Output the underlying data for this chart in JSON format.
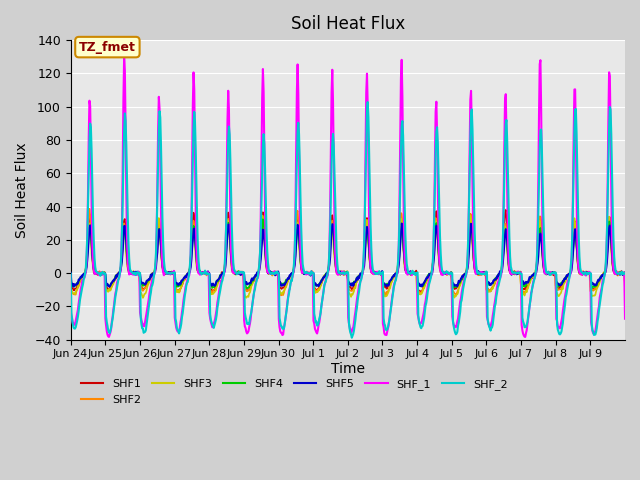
{
  "title": "Soil Heat Flux",
  "ylabel": "Soil Heat Flux",
  "xlabel": "Time",
  "ylim": [
    -40,
    140
  ],
  "series": {
    "SHF1": {
      "color": "#cc0000",
      "peak": 35,
      "trough": -10,
      "lw": 1.2
    },
    "SHF2": {
      "color": "#ff8800",
      "peak": 35,
      "trough": -12,
      "lw": 1.2
    },
    "SHF3": {
      "color": "#cccc00",
      "peak": 32,
      "trough": -13,
      "lw": 1.2
    },
    "SHF4": {
      "color": "#00cc00",
      "peak": 30,
      "trough": -8,
      "lw": 1.2
    },
    "SHF5": {
      "color": "#0000cc",
      "peak": 28,
      "trough": -7,
      "lw": 1.5
    },
    "SHF_1": {
      "color": "#ff00ff",
      "peak": 120,
      "trough": -35,
      "lw": 1.5
    },
    "SHF_2": {
      "color": "#00cccc",
      "peak": 95,
      "trough": -35,
      "lw": 1.5
    }
  },
  "xtick_labels": [
    "Jun 24",
    "Jun 25",
    "Jun 26",
    "Jun 27",
    "Jun 28",
    "Jun 29",
    "Jun 30",
    "Jul 1",
    "Jul 2",
    "Jul 3",
    "Jul 4",
    "Jul 5",
    "Jul 6",
    "Jul 7",
    "Jul 8",
    "Jul 9"
  ],
  "annotation_text": "TZ_fmet",
  "annotation_bg": "#ffffcc",
  "annotation_border": "#cc8800",
  "legend_entries": [
    "SHF1",
    "SHF2",
    "SHF3",
    "SHF4",
    "SHF5",
    "SHF_1",
    "SHF_2"
  ],
  "legend_colors": [
    "#cc0000",
    "#ff8800",
    "#cccc00",
    "#00cc00",
    "#0000cc",
    "#ff00ff",
    "#00cccc"
  ],
  "yticks": [
    -40,
    -20,
    0,
    20,
    40,
    60,
    80,
    100,
    120,
    140
  ],
  "n_days": 16,
  "pts_per_day": 48,
  "phase_shifts": {
    "SHF1": 0.0,
    "SHF2": 0.005,
    "SHF3": 0.01,
    "SHF4": -0.005,
    "SHF5": -0.01,
    "SHF_1": 0.0,
    "SHF_2": -0.02
  },
  "shape_squeeze": {
    "SHF1": 1.0,
    "SHF2": 1.0,
    "SHF3": 1.0,
    "SHF4": 1.0,
    "SHF5": 1.0,
    "SHF_1": 0.8,
    "SHF_2": 1.1
  }
}
